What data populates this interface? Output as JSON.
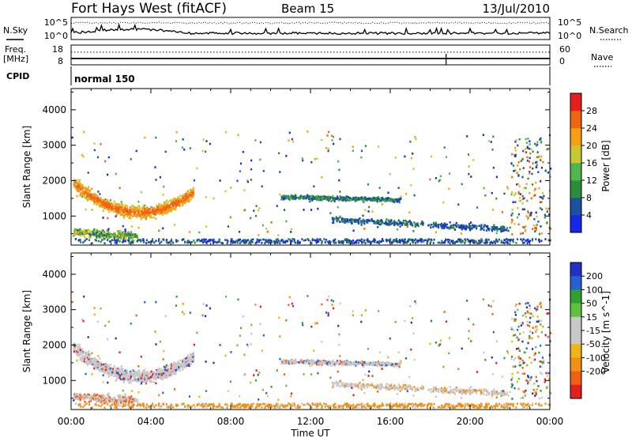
{
  "header": {
    "title": "Fort Hays West (fitACF)",
    "beam": "Beam 15",
    "date": "13/Jul/2010"
  },
  "strip_sky": {
    "left_label": "N.Sky",
    "right_label": "N.Search",
    "tick_top": "10^5",
    "tick_bottom": "10^0"
  },
  "strip_freq": {
    "left_label_1": "Freq.",
    "left_label_2": "[MHz]",
    "right_label": "Nave",
    "left_top": "18",
    "left_bottom": "8",
    "right_top": "60",
    "right_bottom": "0"
  },
  "strip_cpid": {
    "left_label": "CPID",
    "mode": "normal 150"
  },
  "xaxis": {
    "label": "Time UT",
    "ticks": [
      "00:00",
      "04:00",
      "08:00",
      "12:00",
      "16:00",
      "20:00",
      "00:00"
    ]
  },
  "colors": {
    "power": [
      "#1428e6",
      "#1e50a0",
      "#2d8c3c",
      "#50b450",
      "#c8c832",
      "#f5a014",
      "#f06414",
      "#e61e1e"
    ],
    "velocity": [
      "#2030c8",
      "#2860d0",
      "#30a030",
      "#60c040",
      "#c8c8c8",
      "#c8c8c8",
      "#f0b414",
      "#f09014",
      "#f06014",
      "#e02020"
    ]
  },
  "chart_data": [
    {
      "type": "heatmap",
      "panel": "power",
      "ylabel": "Slant Range [km]",
      "ylim": [
        180,
        4600
      ],
      "yticks": [
        "1000",
        "2000",
        "3000",
        "4000"
      ],
      "xlim_hours": [
        0,
        24
      ],
      "colorbar_label": "Power [dB]",
      "colorbar_ticks": [
        "4",
        "8",
        "12",
        "16",
        "20",
        "24",
        "28"
      ],
      "colorbar_range": [
        0,
        32
      ]
    },
    {
      "type": "heatmap",
      "panel": "velocity",
      "ylabel": "Slant Range [km]",
      "ylim": [
        180,
        4600
      ],
      "yticks": [
        "1000",
        "2000",
        "3000",
        "4000"
      ],
      "xlim_hours": [
        0,
        24
      ],
      "colorbar_label": "Velocity [m s^-1]",
      "colorbar_ticks": [
        "200",
        "100",
        "50",
        "15",
        "-15",
        "-50",
        "-100",
        "-200"
      ]
    }
  ]
}
